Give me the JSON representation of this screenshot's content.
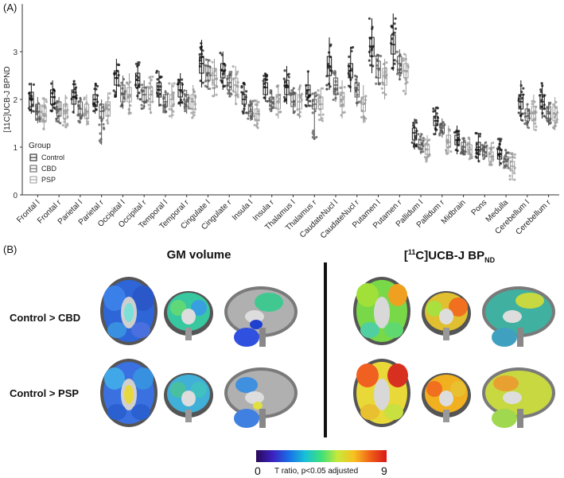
{
  "panel_a_label": "(A)",
  "panel_b_label": "(B)",
  "chart_data": {
    "type": "box",
    "ylabel": "[11C]UCB-J BPND",
    "xlabel": "",
    "ylim": [
      0,
      4
    ],
    "yticks": [
      "0",
      "1",
      "2",
      "3"
    ],
    "grid": false,
    "legend": {
      "title": "Group",
      "position": "bottom-left",
      "entries": [
        "Control",
        "CBD",
        "PSP"
      ]
    },
    "categories": [
      "Frontal l",
      "Frontal r",
      "Parietal l",
      "Parietal r",
      "Occipital l",
      "Occipital r",
      "Temporal l",
      "Temporal r",
      "Cingulate l",
      "Cingulate r",
      "Insula l",
      "Insula r",
      "Thalamus l",
      "Thalamus r",
      "CaudateNucl l",
      "CaudateNucl r",
      "Putamen l",
      "Putamen r",
      "Pallidum l",
      "Pallidum r",
      "Midbrain",
      "Pons",
      "Medulla",
      "Cerebellum l",
      "Cerebellum r"
    ],
    "series": [
      {
        "name": "Control",
        "color": "#111111",
        "median": [
          2.0,
          2.05,
          2.05,
          2.0,
          2.45,
          2.4,
          2.2,
          2.2,
          2.75,
          2.6,
          2.0,
          2.25,
          2.25,
          2.2,
          2.7,
          2.6,
          3.1,
          3.15,
          1.3,
          1.55,
          1.15,
          1.0,
          0.85,
          1.95,
          1.95
        ],
        "q1": [
          1.85,
          1.9,
          1.9,
          1.85,
          2.3,
          2.25,
          2.05,
          2.05,
          2.55,
          2.45,
          1.9,
          2.1,
          2.1,
          2.05,
          2.5,
          2.45,
          2.9,
          2.95,
          1.15,
          1.45,
          1.05,
          0.9,
          0.75,
          1.8,
          1.8
        ],
        "q3": [
          2.15,
          2.2,
          2.2,
          2.1,
          2.6,
          2.55,
          2.35,
          2.35,
          2.9,
          2.75,
          2.1,
          2.35,
          2.4,
          2.3,
          2.9,
          2.75,
          3.3,
          3.35,
          1.4,
          1.65,
          1.25,
          1.1,
          0.95,
          2.1,
          2.1
        ],
        "min": [
          1.7,
          1.75,
          1.7,
          1.7,
          2.05,
          2.0,
          1.85,
          1.85,
          2.25,
          2.2,
          1.7,
          1.95,
          1.9,
          1.85,
          2.2,
          2.15,
          2.55,
          2.6,
          0.95,
          1.25,
          0.85,
          0.7,
          0.6,
          1.55,
          1.6
        ],
        "max": [
          2.35,
          2.4,
          2.4,
          2.35,
          2.85,
          2.8,
          2.6,
          2.55,
          3.25,
          3.0,
          2.35,
          2.55,
          2.7,
          2.6,
          3.3,
          3.1,
          3.7,
          3.8,
          1.6,
          1.85,
          1.45,
          1.3,
          1.2,
          2.4,
          2.35
        ]
      },
      {
        "name": "CBD",
        "color": "#555555",
        "median": [
          1.75,
          1.8,
          1.8,
          1.75,
          2.1,
          2.1,
          1.95,
          1.95,
          2.55,
          2.35,
          1.75,
          1.95,
          1.95,
          1.9,
          2.3,
          2.2,
          2.65,
          2.75,
          1.05,
          1.4,
          1.0,
          0.9,
          0.7,
          1.65,
          1.7
        ],
        "q1": [
          1.6,
          1.65,
          1.65,
          1.6,
          1.95,
          1.95,
          1.85,
          1.85,
          2.4,
          2.2,
          1.65,
          1.85,
          1.85,
          1.8,
          2.1,
          2.05,
          2.45,
          2.55,
          0.95,
          1.3,
          0.9,
          0.8,
          0.6,
          1.55,
          1.55
        ],
        "q3": [
          1.9,
          1.95,
          1.95,
          1.9,
          2.3,
          2.25,
          2.1,
          2.1,
          2.7,
          2.5,
          1.85,
          2.05,
          2.1,
          2.0,
          2.45,
          2.35,
          2.8,
          2.9,
          1.15,
          1.5,
          1.1,
          1.0,
          0.8,
          1.8,
          1.85
        ],
        "min": [
          1.5,
          1.5,
          1.5,
          1.05,
          1.8,
          1.8,
          1.7,
          1.7,
          2.2,
          2.05,
          1.55,
          1.75,
          1.7,
          1.15,
          1.95,
          1.85,
          2.3,
          2.4,
          0.85,
          1.2,
          0.85,
          0.75,
          0.55,
          1.4,
          1.45
        ],
        "max": [
          2.05,
          2.05,
          2.05,
          2.0,
          2.5,
          2.4,
          2.2,
          2.2,
          2.85,
          2.6,
          2.0,
          2.2,
          2.25,
          2.15,
          2.6,
          2.5,
          2.95,
          3.05,
          1.3,
          1.6,
          1.2,
          1.1,
          0.95,
          1.9,
          1.95
        ]
      },
      {
        "name": "PSP",
        "color": "#999999",
        "median": [
          1.7,
          1.75,
          1.75,
          1.8,
          2.1,
          2.1,
          2.0,
          1.95,
          2.5,
          2.3,
          1.7,
          1.95,
          1.95,
          1.9,
          2.0,
          1.9,
          2.5,
          2.6,
          0.95,
          1.1,
          0.95,
          0.8,
          0.6,
          1.7,
          1.7
        ],
        "q1": [
          1.55,
          1.6,
          1.6,
          1.65,
          1.95,
          1.95,
          1.85,
          1.8,
          2.3,
          2.15,
          1.55,
          1.8,
          1.8,
          1.8,
          1.85,
          1.75,
          2.3,
          2.45,
          0.85,
          1.0,
          0.85,
          0.7,
          0.5,
          1.55,
          1.55
        ],
        "q3": [
          1.85,
          1.9,
          1.9,
          1.95,
          2.25,
          2.25,
          2.1,
          2.1,
          2.65,
          2.45,
          1.8,
          2.1,
          2.1,
          2.05,
          2.15,
          2.05,
          2.65,
          2.75,
          1.05,
          1.25,
          1.05,
          0.9,
          0.7,
          1.85,
          1.85
        ],
        "min": [
          1.35,
          1.4,
          1.45,
          1.5,
          1.7,
          1.7,
          1.6,
          1.6,
          2.05,
          1.9,
          1.4,
          1.6,
          1.6,
          1.55,
          1.6,
          1.5,
          2.0,
          2.1,
          0.7,
          0.85,
          0.75,
          0.6,
          0.3,
          1.35,
          1.35
        ],
        "max": [
          2.05,
          2.1,
          2.1,
          2.15,
          2.55,
          2.5,
          2.35,
          2.3,
          2.85,
          2.7,
          2.0,
          2.3,
          2.3,
          2.25,
          2.4,
          2.3,
          2.85,
          2.95,
          1.25,
          1.45,
          1.2,
          1.1,
          0.9,
          2.1,
          2.05
        ]
      }
    ]
  },
  "panel_b": {
    "col1_title": "GM volume",
    "col2_title_pre": "[",
    "col2_title_sup": "11",
    "col2_title_mid": "C]UCB-J BP",
    "col2_title_sub": "ND",
    "row1_label": "Control > CBD",
    "row2_label": "Control > PSP",
    "colorbar": {
      "min_label": "0",
      "max_label": "9",
      "label": "T ratio, p<0.05 adjusted"
    }
  }
}
